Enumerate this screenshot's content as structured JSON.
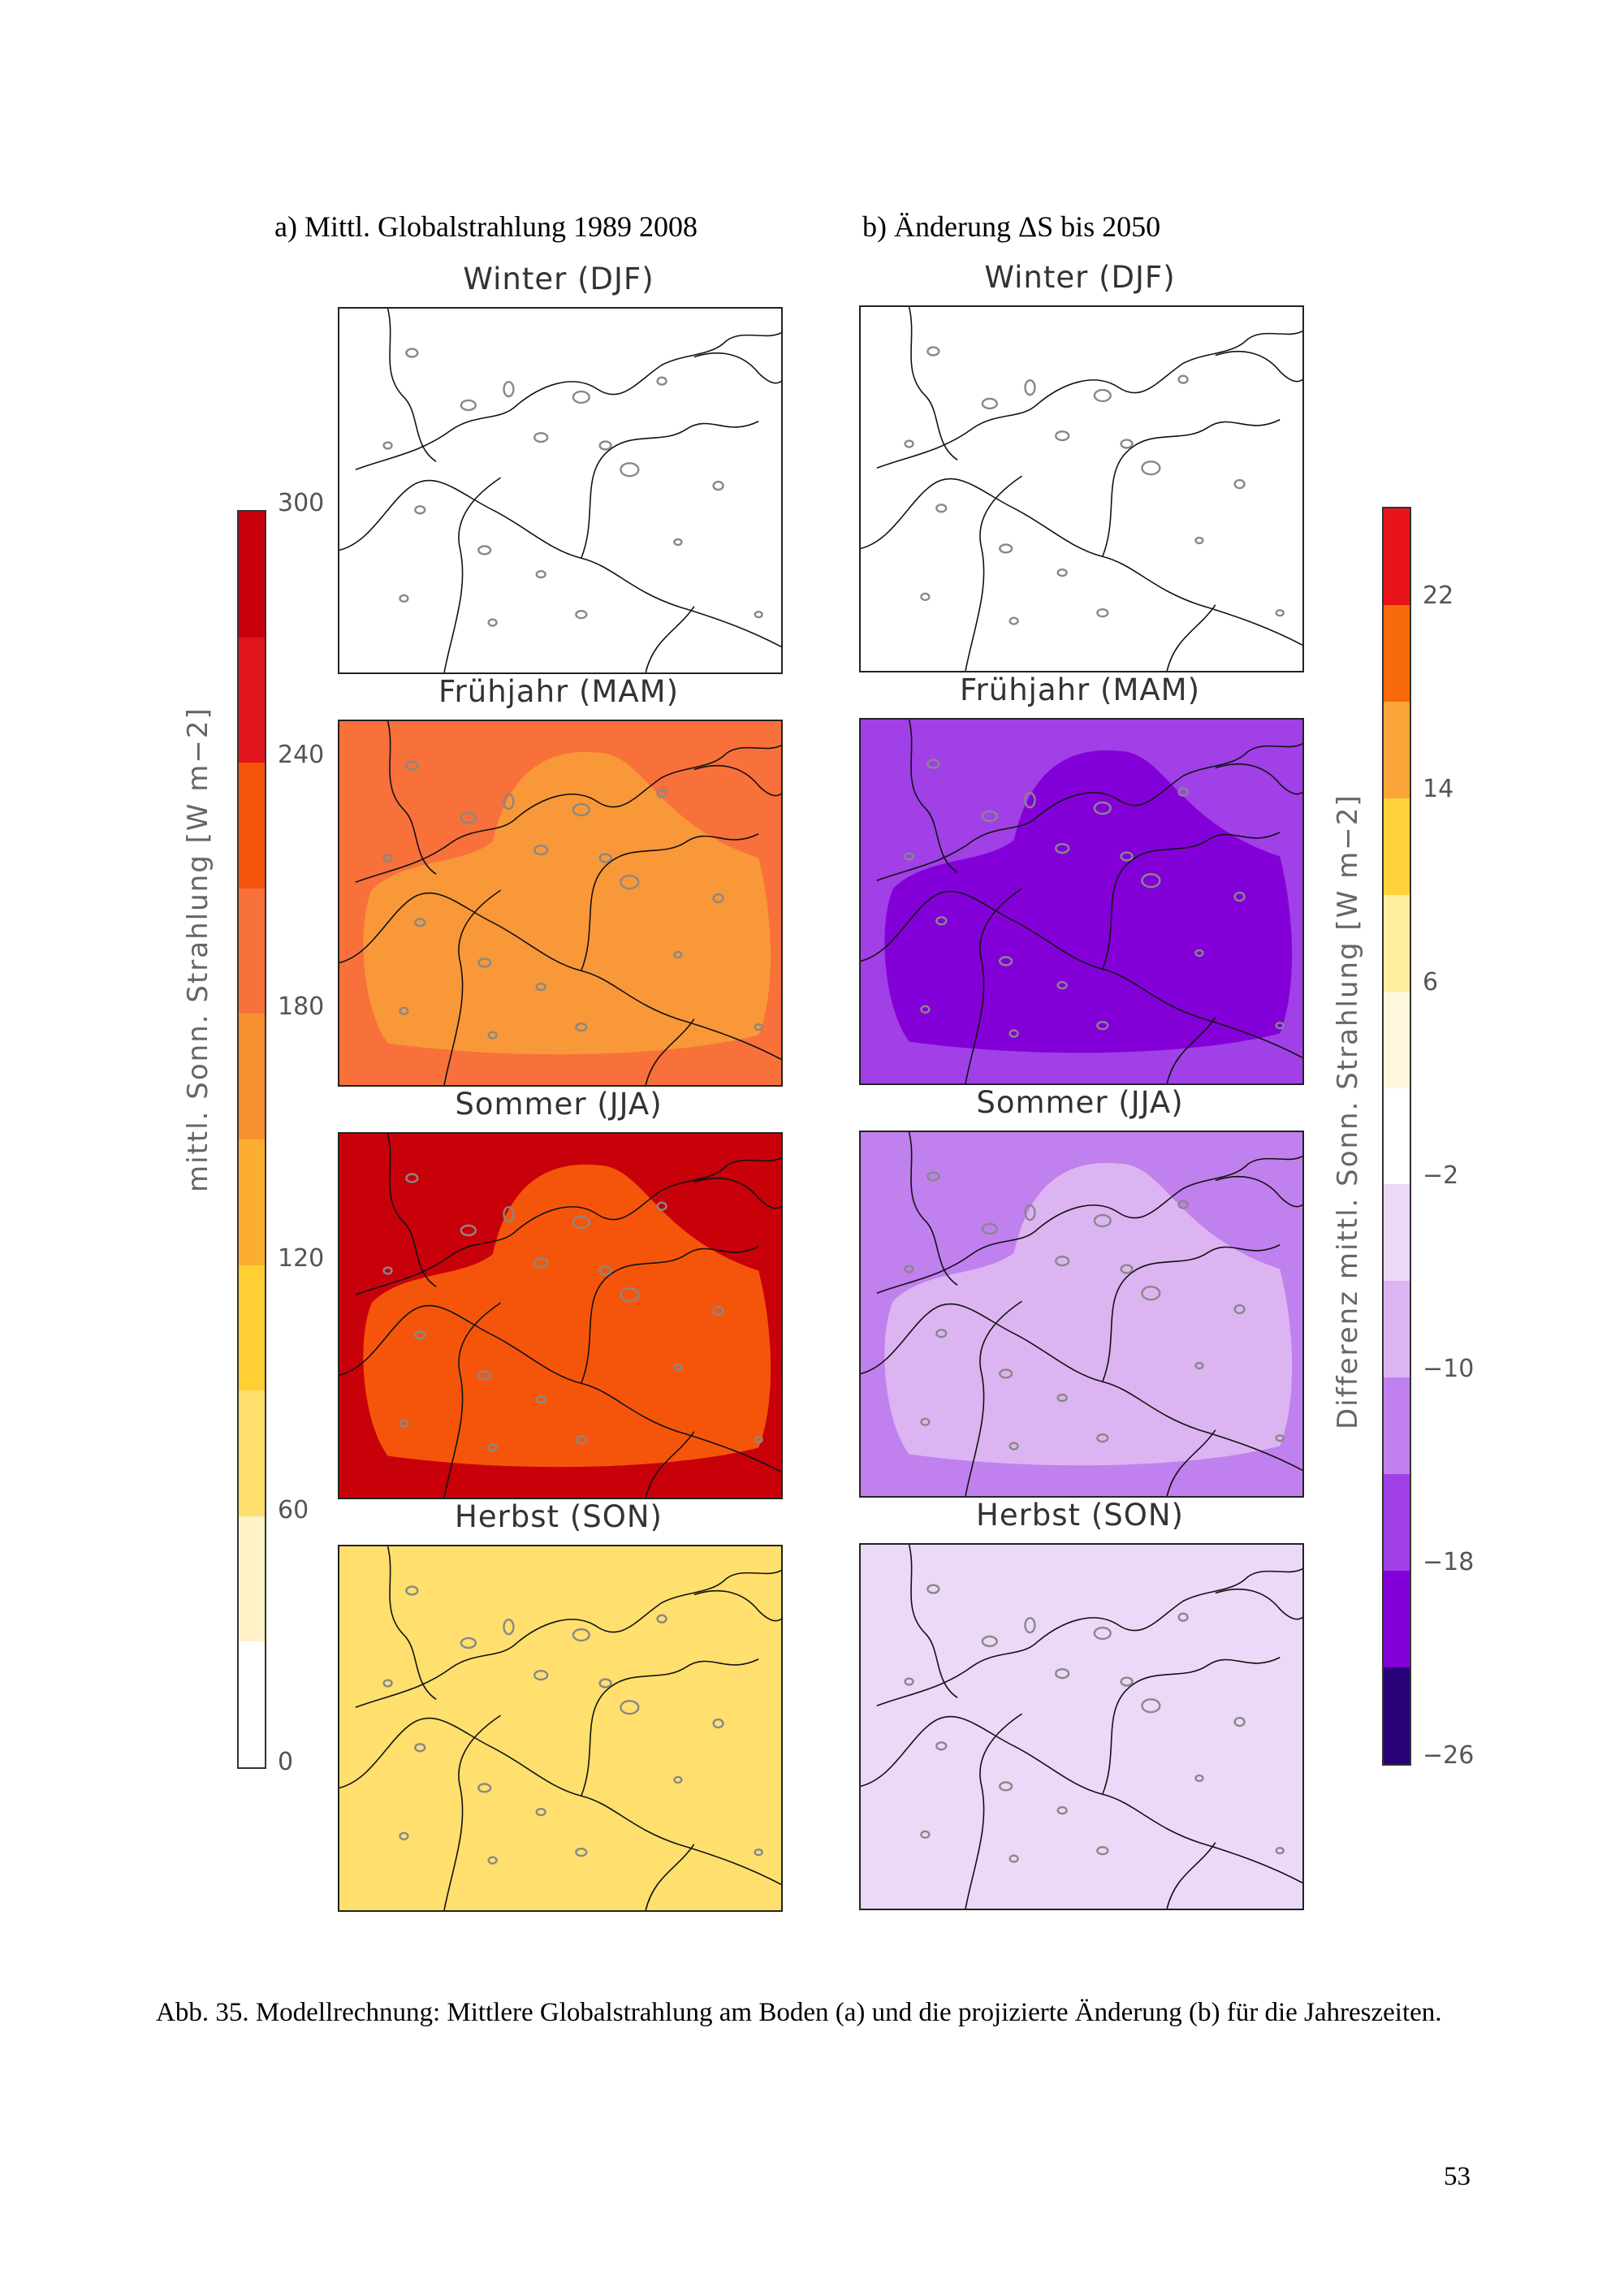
{
  "column_a_title": "a) Mittl. Globalstrahlung 1989 2008",
  "column_b_title": "b) Änderung ΔS bis 2050",
  "seasons": [
    "Winter (DJF)",
    "Frühjahr (MAM)",
    "Sommer (JJA)",
    "Herbst (SON)"
  ],
  "colorbar_a": {
    "label": "mittl. Sonn. Strahlung [W m−2]",
    "ticks": [
      "300",
      "240",
      "180",
      "120",
      "60",
      "0"
    ],
    "colors": [
      "#c8000a",
      "#e0141a",
      "#f5550a",
      "#f8703a",
      "#f99030",
      "#fbae30",
      "#ffcf33",
      "#ffe06e",
      "#fff1c8",
      "#ffffff"
    ]
  },
  "colorbar_b": {
    "label": "Differenz mittl. Sonn. Strahlung [W m−2]",
    "ticks": [
      "22",
      "14",
      "6",
      "−2",
      "−10",
      "−18",
      "−26"
    ],
    "colors": [
      "#e8141a",
      "#f86a0a",
      "#fba43a",
      "#ffd23a",
      "#ffeea0",
      "#fff8dc",
      "#ffffff",
      "#ecd8f7",
      "#dcb4f2",
      "#c080ee",
      "#a040e6",
      "#8400d8",
      "#280078"
    ]
  },
  "maps_a": [
    {
      "season": "Winter (DJF)",
      "fill": "#ffffff",
      "overlay": "#ffffff"
    },
    {
      "season": "Frühjahr (MAM)",
      "fill": "#f8703a",
      "overlay": "#f99838"
    },
    {
      "season": "Sommer (JJA)",
      "fill": "#c8000a",
      "overlay": "#f5550a"
    },
    {
      "season": "Herbst (SON)",
      "fill": "#ffe06e",
      "overlay": "#ffe06e"
    }
  ],
  "maps_b": [
    {
      "season": "Winter (DJF)",
      "fill": "#ffffff",
      "overlay": "#ffffff"
    },
    {
      "season": "Frühjahr (MAM)",
      "fill": "#a040e6",
      "overlay": "#8400d8"
    },
    {
      "season": "Sommer (JJA)",
      "fill": "#c080ee",
      "overlay": "#dcb4f2"
    },
    {
      "season": "Herbst (SON)",
      "fill": "#ecd8f7",
      "overlay": "#ecd8f7"
    }
  ],
  "caption": "Abb. 35. Modellrechnung: Mittlere Globalstrahlung am Boden (a) und die projizierte Änderung (b) für die Jahreszeiten.",
  "page_number": "53"
}
